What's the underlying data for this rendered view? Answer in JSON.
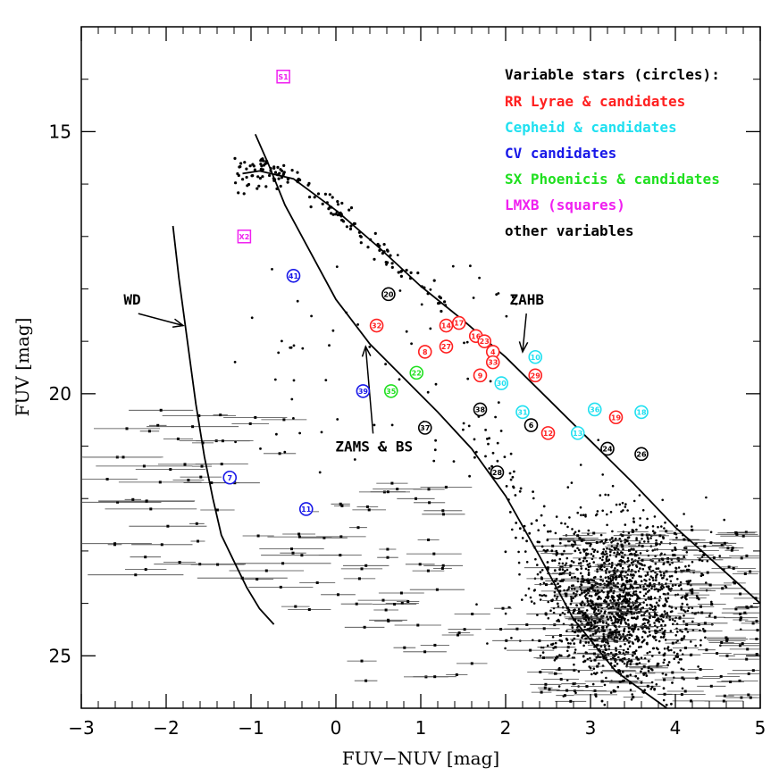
{
  "chart_data": {
    "type": "scatter",
    "xlabel": "FUV−NUV [mag]",
    "ylabel": "FUV [mag]",
    "xlim": [
      -3,
      5
    ],
    "ylim": [
      26,
      13
    ],
    "y_inverted": true,
    "x_ticks": [
      "−3",
      "−2",
      "−1",
      "0",
      "1",
      "2",
      "3",
      "4",
      "5"
    ],
    "x_tick_values": [
      -3,
      -2,
      -1,
      0,
      1,
      2,
      3,
      4,
      5
    ],
    "y_ticks": [
      "15",
      "20",
      "25"
    ],
    "y_tick_values": [
      15,
      20,
      25
    ],
    "legend": {
      "placement": "top-right",
      "title": "Variable stars (circles):",
      "entries": [
        {
          "label": "RR Lyrae & candidates",
          "color": "#ff2020"
        },
        {
          "label": "Cepheid & candidates",
          "color": "#20e0f0"
        },
        {
          "label": "CV candidates",
          "color": "#1818e8"
        },
        {
          "label": "SX Phoenicis & candidates",
          "color": "#20e020"
        },
        {
          "label": "LMXB (squares)",
          "color": "#f020f0"
        },
        {
          "label": "other variables",
          "color": "#000000"
        }
      ]
    },
    "annotations": [
      {
        "text": "WD",
        "x": -2.4,
        "y": 18.3,
        "arrow_to": [
          -1.8,
          18.7
        ]
      },
      {
        "text": "ZAMS & BS",
        "x": 0.45,
        "y": 21.1,
        "arrow_to": [
          0.35,
          19.1
        ]
      },
      {
        "text": "ZAHB",
        "x": 2.25,
        "y": 18.3,
        "arrow_to": [
          2.2,
          19.2
        ]
      }
    ],
    "curves": {
      "ZAHB": {
        "x": [
          -1.1,
          -0.9,
          -0.5,
          0.0,
          0.5,
          1.0,
          1.5,
          2.0,
          2.5,
          3.0,
          3.5,
          4.0,
          5.0
        ],
        "y": [
          15.8,
          15.75,
          15.9,
          16.5,
          17.2,
          17.95,
          18.6,
          19.3,
          20.1,
          20.9,
          21.7,
          22.55,
          24.0
        ]
      },
      "ZAMS": {
        "x": [
          -0.95,
          -0.8,
          -0.6,
          -0.3,
          0.0,
          0.4,
          0.8,
          1.2,
          1.6,
          2.0,
          2.4,
          2.8,
          3.3,
          3.9
        ],
        "y": [
          15.05,
          15.6,
          16.4,
          17.3,
          18.2,
          19.05,
          19.7,
          20.35,
          21.05,
          21.95,
          23.1,
          24.3,
          25.3,
          26.0
        ]
      },
      "WD": {
        "x": [
          -1.92,
          -1.85,
          -1.75,
          -1.65,
          -1.55,
          -1.45,
          -1.35,
          -1.2,
          -1.05,
          -0.9,
          -0.73
        ],
        "y": [
          16.8,
          17.8,
          19.0,
          20.2,
          21.2,
          22.0,
          22.7,
          23.2,
          23.7,
          24.1,
          24.4
        ]
      }
    },
    "series": [
      {
        "name": "RR Lyrae & candidates",
        "color": "#ff2020",
        "shape": "circle",
        "points": [
          {
            "id": "32",
            "x": 0.48,
            "y": 18.7
          },
          {
            "id": "14",
            "x": 1.3,
            "y": 18.7
          },
          {
            "id": "17",
            "x": 1.45,
            "y": 18.65
          },
          {
            "id": "16",
            "x": 1.65,
            "y": 18.9
          },
          {
            "id": "23",
            "x": 1.75,
            "y": 19.0
          },
          {
            "id": "4",
            "x": 1.85,
            "y": 19.2
          },
          {
            "id": "8",
            "x": 1.05,
            "y": 19.2
          },
          {
            "id": "27",
            "x": 1.3,
            "y": 19.1
          },
          {
            "id": "33",
            "x": 1.85,
            "y": 19.4
          },
          {
            "id": "9",
            "x": 1.7,
            "y": 19.65
          },
          {
            "id": "29",
            "x": 2.35,
            "y": 19.65
          },
          {
            "id": "12",
            "x": 2.5,
            "y": 20.75
          },
          {
            "id": "19",
            "x": 3.3,
            "y": 20.45
          }
        ]
      },
      {
        "name": "Cepheid & candidates",
        "color": "#20e0f0",
        "shape": "circle",
        "points": [
          {
            "id": "10",
            "x": 2.35,
            "y": 19.3
          },
          {
            "id": "30",
            "x": 1.95,
            "y": 19.8
          },
          {
            "id": "31",
            "x": 2.2,
            "y": 20.35
          },
          {
            "id": "13",
            "x": 2.85,
            "y": 20.75
          },
          {
            "id": "36",
            "x": 3.05,
            "y": 20.3
          },
          {
            "id": "18",
            "x": 3.6,
            "y": 20.35
          }
        ]
      },
      {
        "name": "CV candidates",
        "color": "#1818e8",
        "shape": "circle",
        "points": [
          {
            "id": "41",
            "x": -0.5,
            "y": 17.75
          },
          {
            "id": "39",
            "x": 0.32,
            "y": 19.95
          },
          {
            "id": "7",
            "x": -1.25,
            "y": 21.6
          },
          {
            "id": "11",
            "x": -0.35,
            "y": 22.2
          }
        ]
      },
      {
        "name": "SX Phoenicis & candidates",
        "color": "#20e020",
        "shape": "circle",
        "points": [
          {
            "id": "22",
            "x": 0.95,
            "y": 19.6
          },
          {
            "id": "35",
            "x": 0.65,
            "y": 19.95
          }
        ]
      },
      {
        "name": "LMXB (squares)",
        "color": "#f020f0",
        "shape": "square",
        "points": [
          {
            "id": "S1",
            "x": -0.62,
            "y": 13.95
          },
          {
            "id": "X2",
            "x": -1.08,
            "y": 17.0
          }
        ]
      },
      {
        "name": "other variables",
        "color": "#000000",
        "shape": "circle",
        "points": [
          {
            "id": "20",
            "x": 0.62,
            "y": 18.1
          },
          {
            "id": "38",
            "x": 1.7,
            "y": 20.3
          },
          {
            "id": "6",
            "x": 2.3,
            "y": 20.6
          },
          {
            "id": "37",
            "x": 1.05,
            "y": 20.65
          },
          {
            "id": "28",
            "x": 1.9,
            "y": 21.5
          },
          {
            "id": "24",
            "x": 3.2,
            "y": 21.05
          },
          {
            "id": "26",
            "x": 3.6,
            "y": 21.15
          }
        ]
      }
    ],
    "field_stars": {
      "color": "#000000",
      "shape": "dot_with_error_bars"
    }
  }
}
